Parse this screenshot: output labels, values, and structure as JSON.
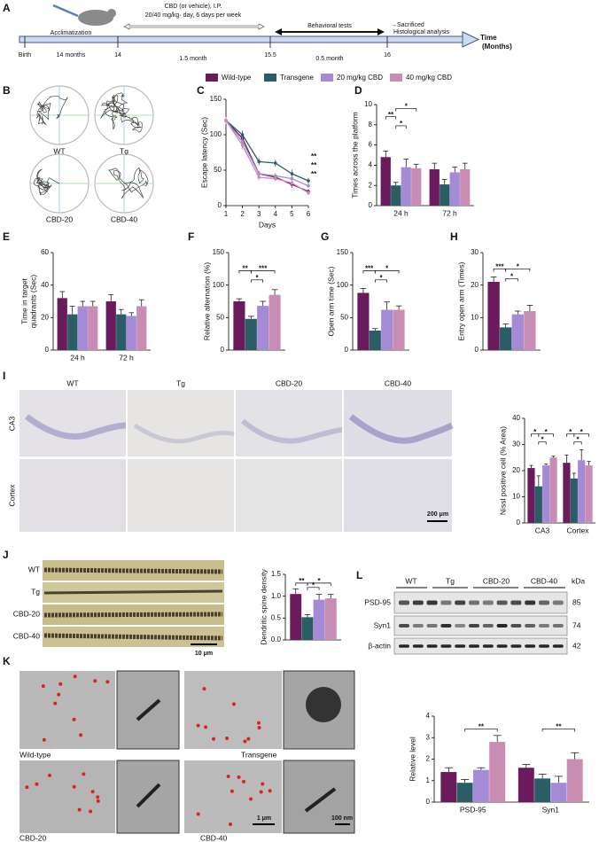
{
  "panel_labels": [
    "A",
    "B",
    "C",
    "D",
    "E",
    "F",
    "G",
    "H",
    "I",
    "J",
    "K",
    "L"
  ],
  "timeline": {
    "acclimatization": "Acclimatization",
    "cbd_line1": "CBD (or vehicle), I.P.",
    "cbd_line2": "20/40 mg/kg· day, 6 days per week",
    "behavioral": "Behavioral tests",
    "sacrificed": "→Sacrificed",
    "histology": "Histological analysis",
    "time": "Time",
    "months": "(Months)",
    "birth": "Birth",
    "d14months": "14 months",
    "t14": "14",
    "d15months": "1.5 month",
    "t155": "15.5",
    "d05month": "0.5 month",
    "t16": "16"
  },
  "groups": [
    {
      "name": "Wild-type",
      "color": "#6a1b5c"
    },
    {
      "name": "Transgene",
      "color": "#2b5d66"
    },
    {
      "name": "20 mg/kg CBD",
      "color": "#a58bd6"
    },
    {
      "name": "40 mg/kg CBD",
      "color": "#c98cb3"
    }
  ],
  "maze_labels": [
    "WT",
    "Tg",
    "CBD-20",
    "CBD-40"
  ],
  "nissl": {
    "columns": [
      "WT",
      "Tg",
      "CBD-20",
      "CBD-40"
    ],
    "rows": [
      "CA3",
      "Cortex"
    ],
    "scale": "200 μm"
  },
  "spine": {
    "rows": [
      "WT",
      "Tg",
      "CBD-20",
      "CBD-40"
    ],
    "scale": "10 μm"
  },
  "em": {
    "labels": [
      "Wild-type",
      "Transgene",
      "CBD-20",
      "CBD-40"
    ],
    "scale_large": "1 μm",
    "scale_inset": "100 nm"
  },
  "blot": {
    "columns": [
      "WT",
      "Tg",
      "CBD-20",
      "CBD-40"
    ],
    "kda": "kDa",
    "rows": [
      {
        "name": "PSD-95",
        "kda": 85
      },
      {
        "name": "Syn1",
        "kda": 74
      },
      {
        "name": "β-actin",
        "kda": 42
      }
    ]
  },
  "chart_data": [
    {
      "type": "line",
      "xlabel": "Days",
      "ylabel": "Escape latency (Sec)",
      "x": [
        1,
        2,
        3,
        4,
        5,
        6
      ],
      "xlim": [
        1,
        6
      ],
      "xticks": [
        1,
        2,
        3,
        4,
        5,
        6
      ],
      "ylim": [
        0,
        150
      ],
      "yticks": [
        0,
        50,
        100,
        150
      ],
      "series": [
        {
          "values": [
            120,
            95,
            45,
            40,
            30,
            20
          ],
          "errors": [
            5,
            8,
            4,
            4,
            5,
            3
          ]
        },
        {
          "values": [
            120,
            100,
            62,
            60,
            45,
            35
          ],
          "errors": [
            5,
            6,
            5,
            5,
            6,
            4
          ]
        },
        {
          "values": [
            120,
            90,
            45,
            42,
            38,
            28
          ],
          "errors": [
            5,
            7,
            4,
            4,
            4,
            3
          ]
        },
        {
          "values": [
            120,
            85,
            40,
            38,
            32,
            18
          ],
          "errors": [
            5,
            6,
            4,
            4,
            4,
            3
          ]
        }
      ],
      "annotations": [
        {
          "text": "**",
          "color": "#6a1b5c"
        },
        {
          "text": "**",
          "color": "#a58bd6"
        },
        {
          "text": "**",
          "color": "#c98cb3"
        }
      ]
    },
    {
      "type": "bar",
      "ylabel": "Times across the platform",
      "categories": [
        "24 h",
        "72 h"
      ],
      "ylim": [
        0,
        10
      ],
      "yticks": [
        0,
        2,
        4,
        6,
        8,
        10
      ],
      "series": [
        {
          "values": [
            4.8,
            3.6
          ],
          "errors": [
            0.6,
            0.6
          ]
        },
        {
          "values": [
            2.0,
            2.1
          ],
          "errors": [
            0.3,
            0.5
          ]
        },
        {
          "values": [
            3.8,
            3.3
          ],
          "errors": [
            0.8,
            0.5
          ]
        },
        {
          "values": [
            3.7,
            3.6
          ],
          "errors": [
            0.4,
            0.6
          ]
        }
      ],
      "annotations": [
        {
          "text": "**"
        },
        {
          "text": "*"
        },
        {
          "text": "*"
        }
      ]
    },
    {
      "type": "bar",
      "ylabel": [
        "Time in target",
        "quadrants (Sec)"
      ],
      "categories": [
        "24 h",
        "72 h"
      ],
      "ylim": [
        0,
        60
      ],
      "yticks": [
        0,
        20,
        40,
        60
      ],
      "series": [
        {
          "values": [
            32,
            30
          ],
          "errors": [
            4,
            4
          ]
        },
        {
          "values": [
            22,
            22
          ],
          "errors": [
            5,
            3
          ]
        },
        {
          "values": [
            27,
            21
          ],
          "errors": [
            3,
            2
          ]
        },
        {
          "values": [
            27,
            27
          ],
          "errors": [
            3,
            4
          ]
        }
      ],
      "annotations": []
    },
    {
      "type": "bar",
      "ylabel": "Relative alternation (%)",
      "ylim": [
        0,
        150
      ],
      "yticks": [
        0,
        50,
        100,
        150
      ],
      "series": [
        {
          "values": [
            75
          ],
          "errors": [
            4
          ]
        },
        {
          "values": [
            48
          ],
          "errors": [
            4
          ]
        },
        {
          "values": [
            68
          ],
          "errors": [
            7
          ]
        },
        {
          "values": [
            85
          ],
          "errors": [
            8
          ]
        }
      ],
      "annotations": [
        {
          "text": "**"
        },
        {
          "text": "*"
        },
        {
          "text": "***"
        }
      ]
    },
    {
      "type": "bar",
      "ylabel": "Open arm time (Sec)",
      "ylim": [
        0,
        150
      ],
      "yticks": [
        0,
        50,
        100,
        150
      ],
      "series": [
        {
          "values": [
            88
          ],
          "errors": [
            7
          ]
        },
        {
          "values": [
            30
          ],
          "errors": [
            3
          ]
        },
        {
          "values": [
            62
          ],
          "errors": [
            12
          ]
        },
        {
          "values": [
            62
          ],
          "errors": [
            6
          ]
        }
      ],
      "annotations": [
        {
          "text": "***"
        },
        {
          "text": "*"
        },
        {
          "text": "*"
        }
      ]
    },
    {
      "type": "bar",
      "ylabel": "Entry open arm (Times)",
      "ylim": [
        0,
        30
      ],
      "yticks": [
        0,
        10,
        20,
        30
      ],
      "series": [
        {
          "values": [
            21
          ],
          "errors": [
            1.5
          ]
        },
        {
          "values": [
            7
          ],
          "errors": [
            1
          ]
        },
        {
          "values": [
            11
          ],
          "errors": [
            1
          ]
        },
        {
          "values": [
            12
          ],
          "errors": [
            1.8
          ]
        }
      ],
      "annotations": [
        {
          "text": "***"
        },
        {
          "text": "*"
        },
        {
          "text": "*"
        }
      ]
    },
    {
      "type": "bar",
      "ylabel": "Nissl positive cell (% Area)",
      "categories": [
        "CA3",
        "Cortex"
      ],
      "ylim": [
        0,
        40
      ],
      "yticks": [
        0,
        10,
        20,
        30,
        40
      ],
      "series": [
        {
          "values": [
            21,
            23
          ],
          "errors": [
            1,
            3
          ]
        },
        {
          "values": [
            14,
            17
          ],
          "errors": [
            4,
            2
          ]
        },
        {
          "values": [
            22,
            24
          ],
          "errors": [
            0.5,
            4
          ]
        },
        {
          "values": [
            25,
            22
          ],
          "errors": [
            0.5,
            1.5
          ]
        }
      ],
      "annotations": [
        {
          "text": "*"
        },
        {
          "text": "*"
        },
        {
          "text": "*"
        },
        {
          "text": "*"
        },
        {
          "text": "*"
        },
        {
          "text": "*"
        }
      ]
    },
    {
      "type": "bar",
      "ylabel": "Dendritic spine density",
      "ylim": [
        0,
        1.5
      ],
      "yticks": [
        {
          "value": 0,
          "label": "0.0"
        },
        0.5,
        {
          "value": 1,
          "label": "1.0"
        },
        1.5
      ],
      "series": [
        {
          "values": [
            1.05
          ],
          "errors": [
            0.12
          ]
        },
        {
          "values": [
            0.52
          ],
          "errors": [
            0.06
          ]
        },
        {
          "values": [
            0.92
          ],
          "errors": [
            0.12
          ]
        },
        {
          "values": [
            0.95
          ],
          "errors": [
            0.09
          ]
        }
      ],
      "annotations": [
        {
          "text": "**"
        },
        {
          "text": "*"
        },
        {
          "text": "*"
        }
      ]
    },
    {
      "type": "bar",
      "ylabel": "Relative level",
      "categories": [
        "PSD-95",
        "Syn1"
      ],
      "ylim": [
        0,
        4
      ],
      "yticks": [
        0,
        1,
        2,
        3,
        4
      ],
      "series": [
        {
          "values": [
            1.4,
            1.6
          ],
          "errors": [
            0.2,
            0.15
          ]
        },
        {
          "values": [
            0.9,
            1.1
          ],
          "errors": [
            0.15,
            0.2
          ]
        },
        {
          "values": [
            1.5,
            0.9
          ],
          "errors": [
            0.1,
            0.3
          ]
        },
        {
          "values": [
            2.8,
            2.0
          ],
          "errors": [
            0.3,
            0.3
          ]
        }
      ],
      "annotations": [
        {
          "text": "**"
        },
        {
          "text": "**"
        }
      ]
    }
  ]
}
